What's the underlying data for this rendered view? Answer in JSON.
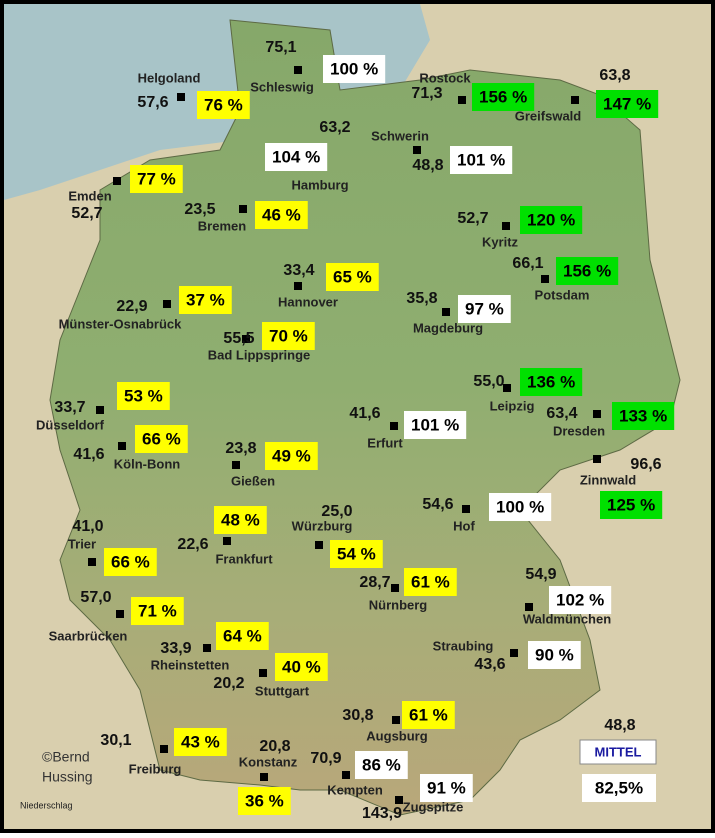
{
  "stations": [
    {
      "name": "Schleswig",
      "amount": "75,1",
      "percent": "100 %",
      "color": "#ffffff"
    },
    {
      "name": "Helgoland",
      "amount": "57,6",
      "percent": "76 %",
      "color": "#ffff00"
    },
    {
      "name": "Rostock",
      "amount": "71,3",
      "percent": "156 %",
      "color": "#00e000"
    },
    {
      "name": "Greifswald",
      "amount": "63,8",
      "percent": "147 %",
      "color": "#00e000"
    },
    {
      "name": "Hamburg",
      "amount": "63,2",
      "percent": "104 %",
      "color": "#ffffff"
    },
    {
      "name": "Schwerin",
      "amount": "48,8",
      "percent": "101 %",
      "color": "#ffffff"
    },
    {
      "name": "Emden",
      "amount": "52,7",
      "percent": "77 %",
      "color": "#ffff00"
    },
    {
      "name": "Bremen",
      "amount": "23,5",
      "percent": "46 %",
      "color": "#ffff00"
    },
    {
      "name": "Kyritz",
      "amount": "52,7",
      "percent": "120 %",
      "color": "#00e000"
    },
    {
      "name": "Hannover",
      "amount": "33,4",
      "percent": "65 %",
      "color": "#ffff00"
    },
    {
      "name": "Potsdam",
      "amount": "66,1",
      "percent": "156 %",
      "color": "#00e000"
    },
    {
      "name": "Münster-Osnabrück",
      "amount": "22,9",
      "percent": "37 %",
      "color": "#ffff00"
    },
    {
      "name": "Magdeburg",
      "amount": "35,8",
      "percent": "97 %",
      "color": "#ffffff"
    },
    {
      "name": "Bad Lippspringe",
      "amount": "55,5",
      "percent": "70 %",
      "color": "#ffff00"
    },
    {
      "name": "Leipzig",
      "amount": "55,0",
      "percent": "136 %",
      "color": "#00e000"
    },
    {
      "name": "Düsseldorf",
      "amount": "33,7",
      "percent": "53 %",
      "color": "#ffff00"
    },
    {
      "name": "Dresden",
      "amount": "63,4",
      "percent": "133 %",
      "color": "#00e000"
    },
    {
      "name": "Erfurt",
      "amount": "41,6",
      "percent": "101 %",
      "color": "#ffffff"
    },
    {
      "name": "Köln-Bonn",
      "amount": "41,6",
      "percent": "66 %",
      "color": "#ffff00"
    },
    {
      "name": "Gießen",
      "amount": "23,8",
      "percent": "49 %",
      "color": "#ffff00"
    },
    {
      "name": "Zinnwald",
      "amount": "96,6",
      "percent": "125 %",
      "color": "#00e000"
    },
    {
      "name": "Hof",
      "amount": "54,6",
      "percent": "100 %",
      "color": "#ffffff"
    },
    {
      "name": "Würzburg",
      "amount": "25,0",
      "percent": "54 %",
      "color": "#ffff00"
    },
    {
      "name": "Frankfurt",
      "amount": "22,6",
      "percent": "48 %",
      "color": "#ffff00"
    },
    {
      "name": "Trier",
      "amount": "41,0",
      "percent": "66 %",
      "color": "#ffff00"
    },
    {
      "name": "Nürnberg",
      "amount": "28,7",
      "percent": "61 %",
      "color": "#ffff00"
    },
    {
      "name": "Waldmünchen",
      "amount": "54,9",
      "percent": "102 %",
      "color": "#ffffff"
    },
    {
      "name": "Saarbrücken",
      "amount": "57,0",
      "percent": "71 %",
      "color": "#ffff00"
    },
    {
      "name": "Rheinstetten",
      "amount": "33,9",
      "percent": "64 %",
      "color": "#ffff00"
    },
    {
      "name": "Straubing",
      "amount": "43,6",
      "percent": "90 %",
      "color": "#ffffff"
    },
    {
      "name": "Stuttgart",
      "amount": "20,2",
      "percent": "40 %",
      "color": "#ffff00"
    },
    {
      "name": "Augsburg",
      "amount": "30,8",
      "percent": "61 %",
      "color": "#ffff00"
    },
    {
      "name": "Freiburg",
      "amount": "30,1",
      "percent": "43 %",
      "color": "#ffff00"
    },
    {
      "name": "Konstanz",
      "amount": "20,8",
      "percent": "36 %",
      "color": "#ffff00"
    },
    {
      "name": "Kempten",
      "amount": "70,9",
      "percent": "86 %",
      "color": "#ffffff"
    },
    {
      "name": "Zugspitze",
      "amount": "143,9",
      "percent": "91 %",
      "color": "#ffffff"
    }
  ],
  "mean": {
    "label": "MITTEL",
    "amount": "48,8",
    "percent": "82,5%"
  },
  "credit": [
    "©Bernd",
    "Hussing"
  ],
  "footer": "Niederschlag"
}
